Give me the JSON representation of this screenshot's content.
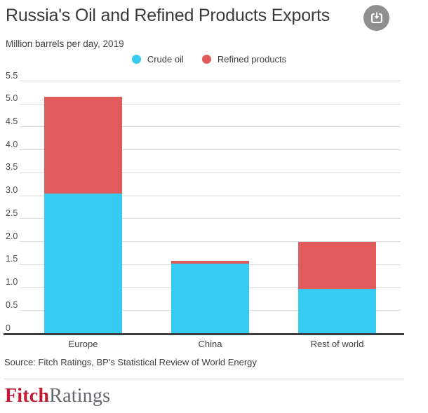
{
  "header": {
    "title": "Russia's Oil and Refined Products Exports",
    "subtitle": "Million barrels per day, 2019"
  },
  "icons": {
    "download_button": "download-icon"
  },
  "legend": {
    "items": [
      {
        "label": "Crude oil",
        "color": "#35cbf2"
      },
      {
        "label": "Refined products",
        "color": "#e05c5c"
      }
    ]
  },
  "chart_data": {
    "type": "bar",
    "stacked": true,
    "title": "Russia's Oil and Refined Products Exports",
    "subtitle": "Million barrels per day, 2019",
    "categories": [
      "Europe",
      "China",
      "Rest of world"
    ],
    "series": [
      {
        "name": "Crude oil",
        "color": "#35cbf2",
        "values": [
          3.04,
          1.52,
          0.96
        ]
      },
      {
        "name": "Refined products",
        "color": "#e05c5c",
        "values": [
          2.11,
          0.06,
          1.03
        ]
      }
    ],
    "stack_totals": [
      5.15,
      1.58,
      1.99
    ],
    "xlabel": "",
    "ylabel": "",
    "ylim": [
      0,
      5.5
    ],
    "ytick_values": [
      0,
      0.5,
      1,
      1.5,
      2,
      2.5,
      3,
      3.5,
      4,
      4.5,
      5,
      5.5
    ],
    "ytick_labels": [
      "0",
      "0.5",
      "1.0",
      "1.5",
      "2.0",
      "2.5",
      "3.0",
      "3.5",
      "4.0",
      "4.5",
      "5.0",
      "5.5"
    ],
    "grid": true,
    "legend_position": "top-center"
  },
  "source": "Source: Fitch Ratings, BP's Statistical Review of World Energy",
  "logo": {
    "part1": "Fitch",
    "part2": "Ratings"
  },
  "colors": {
    "crude": "#35cbf2",
    "refined": "#e05c5c",
    "axis": "#3d3d3d",
    "gridline": "#dadada",
    "download_button_bg": "#8f8f8f",
    "logo_fitch": "#c01933",
    "logo_ratings": "#63666a"
  }
}
